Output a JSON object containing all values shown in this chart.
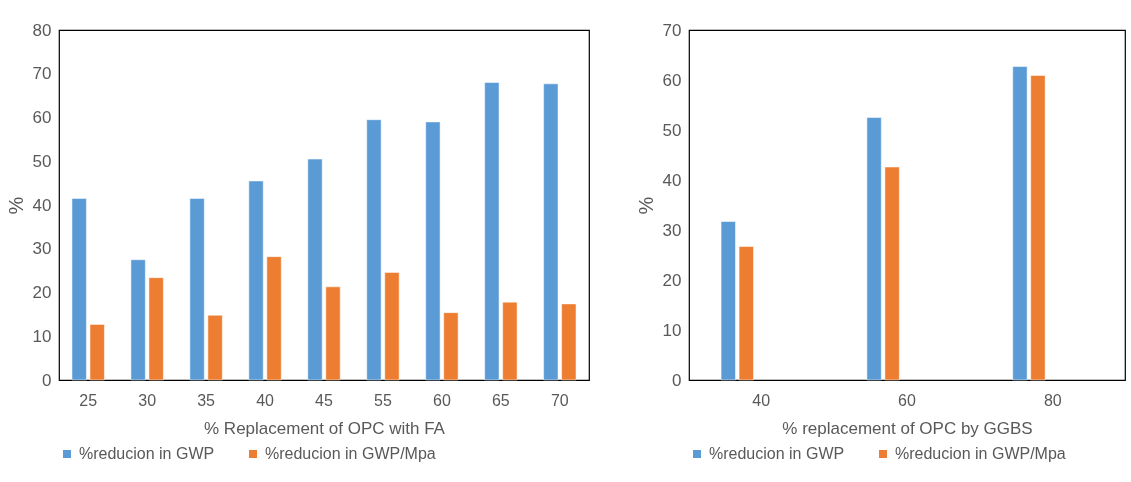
{
  "chart_data": [
    {
      "type": "bar",
      "xlabel": "% Replacement of OPC with FA",
      "ylabel": "%",
      "categories": [
        "25",
        "30",
        "35",
        "40",
        "45",
        "55",
        "60",
        "65",
        "70"
      ],
      "ylim": [
        0,
        80
      ],
      "yticks": [
        0,
        10,
        20,
        30,
        40,
        50,
        60,
        70,
        80
      ],
      "grid": false,
      "legend": "bottom",
      "series": [
        {
          "name": "%reducion in GWP",
          "color": "#5b9bd5",
          "values": [
            41.5,
            27.5,
            41.5,
            45.5,
            50.5,
            59.5,
            59,
            68,
            67.7
          ]
        },
        {
          "name": "%reducion in GWP/Mpa",
          "color": "#ed7d31",
          "values": [
            12.7,
            23.4,
            14.8,
            28.2,
            21.3,
            24.6,
            15.4,
            17.8,
            17.4
          ]
        }
      ]
    },
    {
      "type": "bar",
      "xlabel": "% replacement of OPC by GGBS",
      "ylabel": "%",
      "categories": [
        "40",
        "60",
        "80"
      ],
      "ylim": [
        0,
        70
      ],
      "yticks": [
        0,
        10,
        20,
        30,
        40,
        50,
        60,
        70
      ],
      "grid": false,
      "legend": "bottom",
      "series": [
        {
          "name": "%reducion in GWP",
          "color": "#5b9bd5",
          "values": [
            31.7,
            52.5,
            62.7
          ]
        },
        {
          "name": "%reducion in GWP/Mpa",
          "color": "#ed7d31",
          "values": [
            26.7,
            42.6,
            60.9
          ]
        }
      ]
    }
  ]
}
